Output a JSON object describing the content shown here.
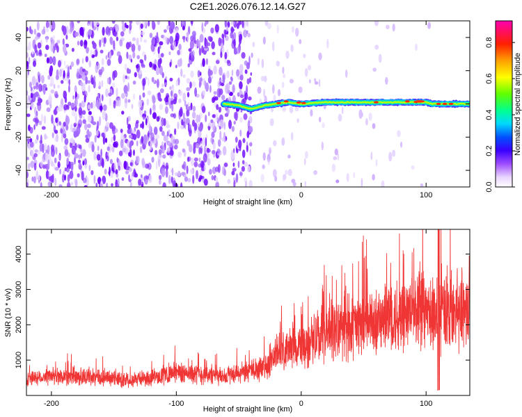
{
  "title": "C2E1.2026.076.12.14.G27",
  "chart_data": [
    {
      "type": "heatmap",
      "xlabel": "Height of straight line (km)",
      "ylabel": "Frequency (Hz)",
      "xlim": [
        -220,
        135
      ],
      "ylim": [
        -50,
        50
      ],
      "xticks": [
        -200,
        -100,
        0,
        100
      ],
      "yticks": [
        -40,
        -20,
        0,
        20,
        40
      ],
      "colorbar": {
        "label": "Normalized spectral amplitude",
        "range": [
          0,
          0.92
        ],
        "ticks": [
          0,
          0.2,
          0.4,
          0.6,
          0.8
        ],
        "colors": [
          "#ffffff",
          "#c8a0ff",
          "#6a00ff",
          "#0000ff",
          "#00c8ff",
          "#00ff80",
          "#80ff00",
          "#ffff00",
          "#ffa000",
          "#ff0000",
          "#ff00c0"
        ]
      },
      "signal_band": {
        "description_points_x": [
          -60,
          -50,
          -40,
          -30,
          -20,
          -10,
          0,
          20,
          40,
          60,
          80,
          90,
          100,
          105,
          110,
          120,
          135
        ],
        "description_points_y": [
          0,
          -1,
          -3,
          -1,
          0,
          1,
          0,
          1,
          1,
          1,
          1,
          1,
          1,
          0,
          0,
          0,
          0
        ]
      }
    },
    {
      "type": "line",
      "xlabel": "Height of straight line (km)",
      "ylabel": "SNR (10 * v/v)",
      "xlim": [
        -220,
        135
      ],
      "ylim": [
        0,
        4700
      ],
      "xticks": [
        -200,
        -100,
        0,
        100
      ],
      "yticks": [
        1000,
        2000,
        3000,
        4000
      ],
      "color": "#f03535",
      "trend": {
        "x": [
          -220,
          -180,
          -140,
          -120,
          -100,
          -60,
          -30,
          -20,
          0,
          20,
          40,
          60,
          80,
          100,
          110,
          120,
          135
        ],
        "y": [
          500,
          550,
          450,
          500,
          650,
          550,
          750,
          1200,
          1400,
          1750,
          1950,
          2100,
          2300,
          2350,
          2400,
          2350,
          2500
        ]
      }
    }
  ]
}
